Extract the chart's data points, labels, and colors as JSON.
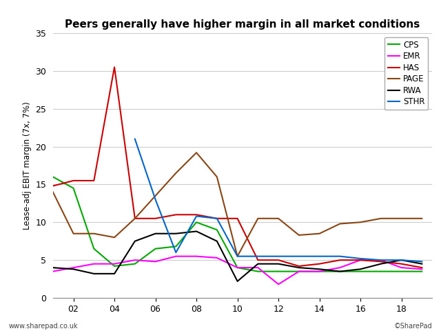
{
  "title": "Peers generally have higher margin in all market conditions",
  "ylabel": "Lease-adj EBIT margin (7x, 7%)",
  "footer_left": "www.sharepad.co.uk",
  "footer_right": "©SharePad",
  "x_ticks": [
    2,
    4,
    6,
    8,
    10,
    12,
    14,
    16,
    18
  ],
  "x_tick_labels": [
    "02",
    "04",
    "06",
    "08",
    "10",
    "12",
    "14",
    "16",
    "18"
  ],
  "xlim": [
    1,
    19.5
  ],
  "ylim": [
    0,
    35
  ],
  "y_ticks": [
    0,
    5,
    10,
    15,
    20,
    25,
    30,
    35
  ],
  "series": {
    "CPS": {
      "color": "#00aa00",
      "x": [
        1,
        2,
        3,
        4,
        5,
        6,
        7,
        8,
        9,
        10,
        11,
        12,
        13,
        14,
        15,
        16,
        17,
        18,
        19
      ],
      "y": [
        16.0,
        14.5,
        6.5,
        4.2,
        4.5,
        6.5,
        6.8,
        10.0,
        9.0,
        4.0,
        3.5,
        3.5,
        3.5,
        3.5,
        3.5,
        3.5,
        3.5,
        3.5,
        3.5
      ]
    },
    "EMR": {
      "color": "#ff00ff",
      "x": [
        1,
        2,
        3,
        4,
        5,
        6,
        7,
        8,
        9,
        10,
        11,
        12,
        13,
        14,
        15,
        16,
        17,
        18,
        19
      ],
      "y": [
        3.5,
        4.0,
        4.5,
        4.5,
        5.0,
        4.8,
        5.5,
        5.5,
        5.3,
        4.0,
        4.0,
        1.8,
        3.5,
        3.5,
        4.0,
        5.0,
        5.0,
        4.0,
        3.8
      ]
    },
    "HAS": {
      "color": "#cc0000",
      "x": [
        1,
        2,
        3,
        4,
        5,
        6,
        7,
        8,
        9,
        10,
        11,
        12,
        13,
        14,
        15,
        16,
        17,
        18,
        19
      ],
      "y": [
        14.8,
        15.5,
        15.5,
        30.5,
        10.5,
        10.5,
        11.0,
        11.0,
        10.5,
        10.5,
        5.0,
        5.0,
        4.2,
        4.5,
        5.0,
        5.0,
        4.8,
        4.5,
        4.0
      ]
    },
    "PAGE": {
      "color": "#8B4513",
      "x": [
        1,
        2,
        3,
        4,
        5,
        6,
        7,
        8,
        9,
        10,
        11,
        12,
        13,
        14,
        15,
        16,
        17,
        18,
        19
      ],
      "y": [
        14.0,
        8.5,
        8.5,
        8.0,
        10.5,
        13.5,
        16.5,
        19.2,
        16.0,
        5.5,
        10.5,
        10.5,
        8.3,
        8.5,
        9.8,
        10.0,
        10.5,
        10.5,
        10.5
      ]
    },
    "RWA": {
      "color": "#000000",
      "x": [
        1,
        2,
        3,
        4,
        5,
        6,
        7,
        8,
        9,
        10,
        11,
        12,
        13,
        14,
        15,
        16,
        17,
        18,
        19
      ],
      "y": [
        4.0,
        3.8,
        3.2,
        3.2,
        7.5,
        8.5,
        8.5,
        8.8,
        7.5,
        2.2,
        4.5,
        4.5,
        4.0,
        3.8,
        3.5,
        3.8,
        4.5,
        5.0,
        4.5
      ]
    },
    "STHR": {
      "color": "#0066cc",
      "x": [
        5,
        6,
        7,
        8,
        9,
        10,
        11,
        12,
        13,
        14,
        15,
        16,
        17,
        18,
        19
      ],
      "y": [
        21.0,
        13.0,
        6.0,
        10.8,
        10.5,
        5.5,
        5.5,
        5.5,
        5.5,
        5.5,
        5.5,
        5.2,
        5.0,
        5.0,
        4.8
      ]
    }
  },
  "legend_order": [
    "CPS",
    "EMR",
    "HAS",
    "PAGE",
    "RWA",
    "STHR"
  ],
  "background_color": "#ffffff",
  "grid_color": "#cccccc"
}
